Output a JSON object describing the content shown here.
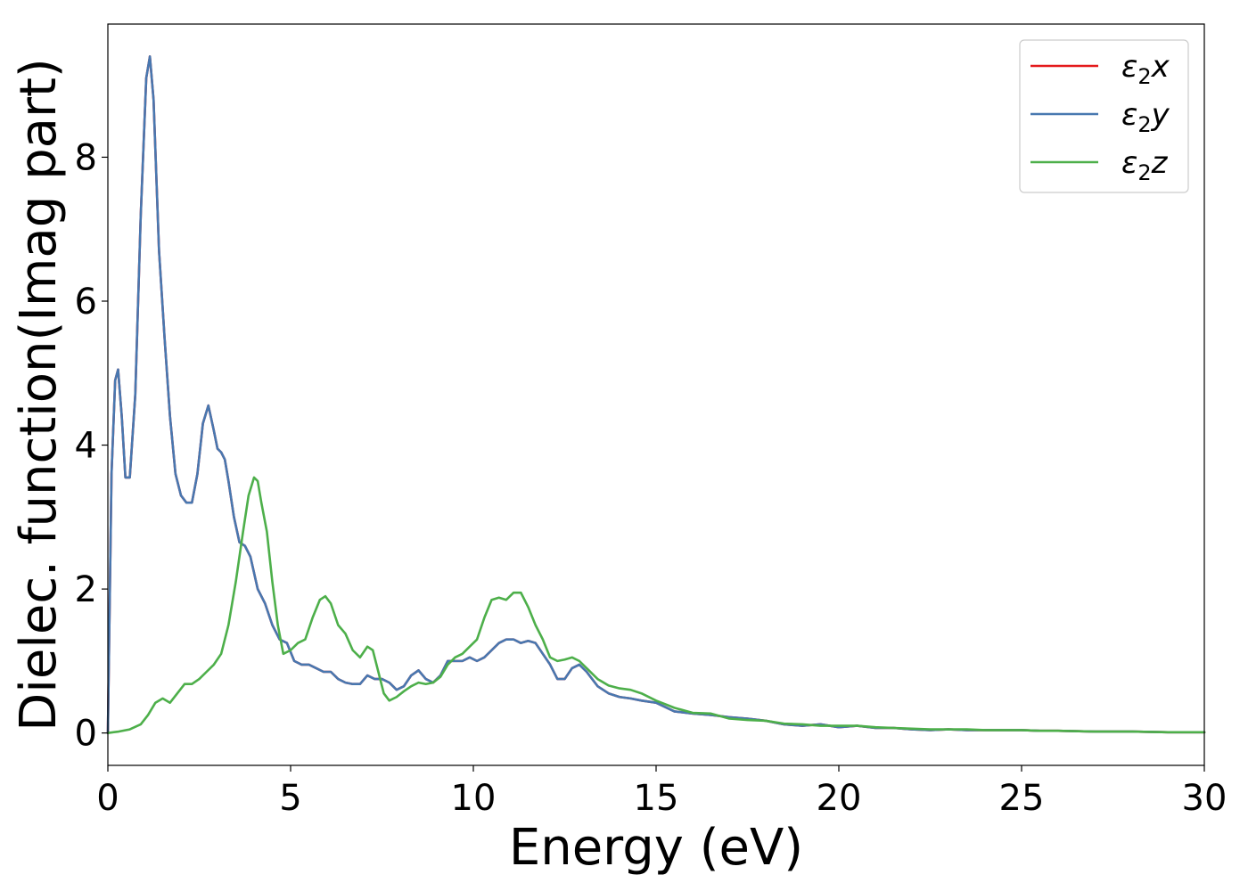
{
  "chart_data": {
    "type": "line",
    "title": "",
    "xlabel": "Energy (eV)",
    "ylabel": "Dielec. function(Imag part)",
    "xlim": [
      0,
      30
    ],
    "ylim": [
      -0.45,
      9.85
    ],
    "xticks": [
      0,
      5,
      10,
      15,
      20,
      25,
      30
    ],
    "yticks": [
      0,
      2,
      4,
      6,
      8
    ],
    "grid": false,
    "legend": "top-right",
    "series": [
      {
        "name": "ε₂x",
        "legend_base": "ε",
        "legend_sub": "2",
        "legend_tail": "x",
        "color": "#e41a1c",
        "x": [
          0,
          0.1,
          0.2,
          0.28,
          0.38,
          0.48,
          0.6,
          0.75,
          0.9,
          1.05,
          1.15,
          1.25,
          1.4,
          1.55,
          1.7,
          1.85,
          2.0,
          2.15,
          2.3,
          2.45,
          2.6,
          2.75,
          2.9,
          3.0,
          3.1,
          3.2,
          3.3,
          3.45,
          3.6,
          3.75,
          3.9,
          4.1,
          4.3,
          4.5,
          4.7,
          4.9,
          5.1,
          5.3,
          5.5,
          5.7,
          5.9,
          6.1,
          6.3,
          6.5,
          6.7,
          6.9,
          7.1,
          7.3,
          7.5,
          7.7,
          7.9,
          8.1,
          8.3,
          8.5,
          8.7,
          8.9,
          9.1,
          9.3,
          9.5,
          9.7,
          9.9,
          10.1,
          10.3,
          10.5,
          10.7,
          10.9,
          11.1,
          11.3,
          11.5,
          11.7,
          11.9,
          12.1,
          12.3,
          12.5,
          12.7,
          12.9,
          13.1,
          13.4,
          13.7,
          14.0,
          14.3,
          14.6,
          15.0,
          15.5,
          16.0,
          16.5,
          17.0,
          17.5,
          18.0,
          18.5,
          19.0,
          19.5,
          20.0,
          20.5,
          21.0,
          21.5,
          22.0,
          22.5,
          23.0,
          23.5,
          24.0,
          24.5,
          25.0,
          25.5,
          26.0,
          27.0,
          28.0,
          29.0,
          30.0
        ],
        "y": [
          0,
          3.6,
          4.9,
          5.05,
          4.4,
          3.55,
          3.55,
          4.7,
          7.2,
          9.1,
          9.4,
          8.8,
          6.7,
          5.5,
          4.4,
          3.6,
          3.3,
          3.2,
          3.2,
          3.6,
          4.3,
          4.55,
          4.2,
          3.95,
          3.9,
          3.8,
          3.5,
          3.0,
          2.65,
          2.6,
          2.45,
          2.0,
          1.8,
          1.5,
          1.3,
          1.25,
          1.0,
          0.95,
          0.95,
          0.9,
          0.85,
          0.85,
          0.75,
          0.7,
          0.68,
          0.68,
          0.8,
          0.75,
          0.75,
          0.7,
          0.6,
          0.65,
          0.8,
          0.87,
          0.75,
          0.7,
          0.8,
          1.0,
          1.0,
          1.0,
          1.05,
          1.0,
          1.05,
          1.15,
          1.25,
          1.3,
          1.3,
          1.25,
          1.28,
          1.25,
          1.1,
          0.95,
          0.75,
          0.75,
          0.9,
          0.95,
          0.85,
          0.65,
          0.55,
          0.5,
          0.48,
          0.45,
          0.42,
          0.3,
          0.27,
          0.25,
          0.22,
          0.2,
          0.17,
          0.12,
          0.1,
          0.12,
          0.08,
          0.1,
          0.07,
          0.07,
          0.05,
          0.04,
          0.05,
          0.04,
          0.04,
          0.04,
          0.04,
          0.03,
          0.03,
          0.02,
          0.02,
          0.01,
          0.01
        ]
      },
      {
        "name": "ε₂y",
        "legend_base": "ε",
        "legend_sub": "2",
        "legend_tail": "y",
        "color": "#4878b0",
        "x": [
          0,
          0.1,
          0.2,
          0.28,
          0.38,
          0.48,
          0.6,
          0.75,
          0.9,
          1.05,
          1.15,
          1.25,
          1.4,
          1.55,
          1.7,
          1.85,
          2.0,
          2.15,
          2.3,
          2.45,
          2.6,
          2.75,
          2.9,
          3.0,
          3.1,
          3.2,
          3.3,
          3.45,
          3.6,
          3.75,
          3.9,
          4.1,
          4.3,
          4.5,
          4.7,
          4.9,
          5.1,
          5.3,
          5.5,
          5.7,
          5.9,
          6.1,
          6.3,
          6.5,
          6.7,
          6.9,
          7.1,
          7.3,
          7.5,
          7.7,
          7.9,
          8.1,
          8.3,
          8.5,
          8.7,
          8.9,
          9.1,
          9.3,
          9.5,
          9.7,
          9.9,
          10.1,
          10.3,
          10.5,
          10.7,
          10.9,
          11.1,
          11.3,
          11.5,
          11.7,
          11.9,
          12.1,
          12.3,
          12.5,
          12.7,
          12.9,
          13.1,
          13.4,
          13.7,
          14.0,
          14.3,
          14.6,
          15.0,
          15.5,
          16.0,
          16.5,
          17.0,
          17.5,
          18.0,
          18.5,
          19.0,
          19.5,
          20.0,
          20.5,
          21.0,
          21.5,
          22.0,
          22.5,
          23.0,
          23.5,
          24.0,
          24.5,
          25.0,
          25.5,
          26.0,
          27.0,
          28.0,
          29.0,
          30.0
        ],
        "y": [
          0,
          3.6,
          4.9,
          5.05,
          4.4,
          3.55,
          3.55,
          4.7,
          7.2,
          9.1,
          9.4,
          8.8,
          6.7,
          5.5,
          4.4,
          3.6,
          3.3,
          3.2,
          3.2,
          3.6,
          4.3,
          4.55,
          4.2,
          3.95,
          3.9,
          3.8,
          3.5,
          3.0,
          2.65,
          2.6,
          2.45,
          2.0,
          1.8,
          1.5,
          1.3,
          1.25,
          1.0,
          0.95,
          0.95,
          0.9,
          0.85,
          0.85,
          0.75,
          0.7,
          0.68,
          0.68,
          0.8,
          0.75,
          0.75,
          0.7,
          0.6,
          0.65,
          0.8,
          0.87,
          0.75,
          0.7,
          0.8,
          1.0,
          1.0,
          1.0,
          1.05,
          1.0,
          1.05,
          1.15,
          1.25,
          1.3,
          1.3,
          1.25,
          1.28,
          1.25,
          1.1,
          0.95,
          0.75,
          0.75,
          0.9,
          0.95,
          0.85,
          0.65,
          0.55,
          0.5,
          0.48,
          0.45,
          0.42,
          0.3,
          0.27,
          0.25,
          0.22,
          0.2,
          0.17,
          0.12,
          0.1,
          0.12,
          0.08,
          0.1,
          0.07,
          0.07,
          0.05,
          0.04,
          0.05,
          0.04,
          0.04,
          0.04,
          0.04,
          0.03,
          0.03,
          0.02,
          0.02,
          0.01,
          0.01
        ]
      },
      {
        "name": "ε₂z",
        "legend_base": "ε",
        "legend_sub": "2",
        "legend_tail": "z",
        "color": "#4daf4a",
        "x": [
          0,
          0.3,
          0.6,
          0.9,
          1.1,
          1.3,
          1.5,
          1.7,
          1.9,
          2.1,
          2.3,
          2.5,
          2.7,
          2.9,
          3.1,
          3.3,
          3.5,
          3.7,
          3.85,
          4.0,
          4.1,
          4.2,
          4.35,
          4.5,
          4.65,
          4.8,
          5.0,
          5.2,
          5.4,
          5.6,
          5.8,
          5.95,
          6.1,
          6.3,
          6.5,
          6.7,
          6.9,
          7.1,
          7.25,
          7.4,
          7.55,
          7.7,
          7.9,
          8.1,
          8.3,
          8.5,
          8.7,
          8.9,
          9.1,
          9.3,
          9.5,
          9.7,
          9.9,
          10.1,
          10.3,
          10.5,
          10.7,
          10.9,
          11.1,
          11.3,
          11.5,
          11.7,
          11.9,
          12.1,
          12.3,
          12.5,
          12.7,
          12.9,
          13.1,
          13.4,
          13.7,
          14.0,
          14.3,
          14.6,
          15.0,
          15.5,
          16.0,
          16.5,
          17.0,
          17.5,
          18.0,
          18.5,
          19.0,
          19.5,
          20.0,
          20.5,
          21.0,
          21.5,
          22.0,
          22.5,
          23.0,
          23.5,
          24.0,
          24.5,
          25.0,
          25.5,
          26.0,
          27.0,
          28.0,
          29.0,
          30.0
        ],
        "y": [
          0,
          0.02,
          0.05,
          0.12,
          0.25,
          0.42,
          0.48,
          0.42,
          0.55,
          0.68,
          0.68,
          0.75,
          0.85,
          0.95,
          1.1,
          1.5,
          2.1,
          2.8,
          3.3,
          3.55,
          3.5,
          3.2,
          2.8,
          2.1,
          1.5,
          1.1,
          1.15,
          1.25,
          1.3,
          1.6,
          1.85,
          1.9,
          1.8,
          1.5,
          1.38,
          1.15,
          1.05,
          1.2,
          1.15,
          0.85,
          0.55,
          0.45,
          0.5,
          0.58,
          0.65,
          0.7,
          0.68,
          0.7,
          0.78,
          0.95,
          1.05,
          1.1,
          1.2,
          1.3,
          1.6,
          1.85,
          1.88,
          1.85,
          1.95,
          1.95,
          1.75,
          1.5,
          1.3,
          1.05,
          1.0,
          1.02,
          1.05,
          1.0,
          0.9,
          0.75,
          0.66,
          0.62,
          0.6,
          0.55,
          0.45,
          0.35,
          0.28,
          0.27,
          0.2,
          0.18,
          0.17,
          0.13,
          0.12,
          0.1,
          0.1,
          0.1,
          0.08,
          0.07,
          0.06,
          0.05,
          0.05,
          0.05,
          0.04,
          0.04,
          0.04,
          0.03,
          0.03,
          0.02,
          0.02,
          0.01,
          0.01
        ]
      }
    ]
  }
}
